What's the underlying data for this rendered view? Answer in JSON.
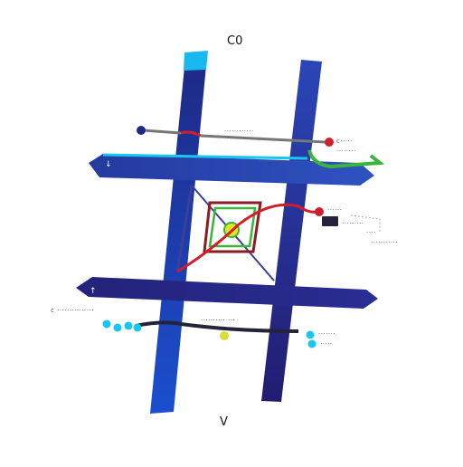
{
  "top_label": "C0",
  "bottom_label": "V",
  "callouts": {
    "red_top": "c·····",
    "top_track": "············",
    "green_note": "········",
    "red_mid": "······",
    "mid_note_1": "·········",
    "mid_note_2": "····",
    "mid_note_3": "···········",
    "left_note": "c ···············",
    "center_note": "·········· ···",
    "cyan_note_1": "·······",
    "cyan_note_2": "·····"
  },
  "colors": {
    "bar_dark": "#1e2a86",
    "bar_blue": "#1b4fcf",
    "accent_cyan": "#19c6f0",
    "route_red": "#d11f2a",
    "route_green": "#39b53a",
    "route_grey": "#777777",
    "center_yellow": "#e3e524"
  }
}
